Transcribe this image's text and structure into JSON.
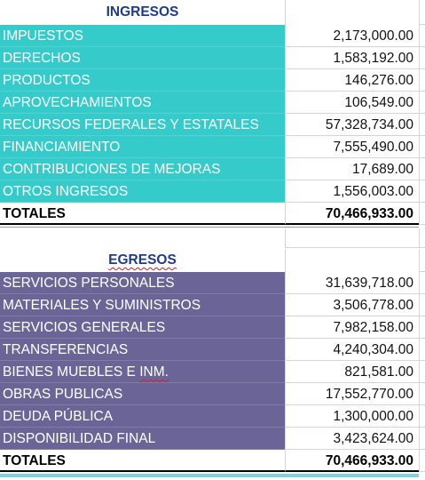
{
  "ingresos": {
    "title": "INGRESOS",
    "rows": [
      [
        "IMPUESTOS",
        "2,173,000.00"
      ],
      [
        "DERECHOS",
        "1,583,192.00"
      ],
      [
        "PRODUCTOS",
        "146,276.00"
      ],
      [
        "APROVECHAMIENTOS",
        "106,549.00"
      ],
      [
        "RECURSOS FEDERALES Y ESTATALES",
        "57,328,734.00"
      ],
      [
        "FINANCIAMIENTO",
        "7,555,490.00"
      ],
      [
        "CONTRIBUCIONES DE MEJORAS",
        "17,689.00"
      ],
      [
        "OTROS INGRESOS",
        "1,556,003.00"
      ]
    ],
    "total": [
      "TOTALES",
      "70,466,933.00"
    ]
  },
  "egresos": {
    "title": "EGRESOS",
    "rows": [
      [
        "SERVICIOS PERSONALES",
        "31,639,718.00"
      ],
      [
        "MATERIALES Y SUMINISTROS",
        "3,506,778.00"
      ],
      [
        "SERVICIOS GENERALES",
        "7,982,158.00"
      ],
      [
        "TRANSFERENCIAS",
        "4,240,304.00"
      ],
      [
        "BIENES MUEBLES E INM.",
        "821,581.00"
      ],
      [
        "OBRAS PUBLICAS",
        "17,552,770.00"
      ],
      [
        "DEUDA PÚBLICA",
        "1,300,000.00"
      ],
      [
        "DISPONIBILIDAD FINAL",
        "3,423,624.00"
      ]
    ],
    "total": [
      "TOTALES",
      "70,466,933.00"
    ]
  }
}
